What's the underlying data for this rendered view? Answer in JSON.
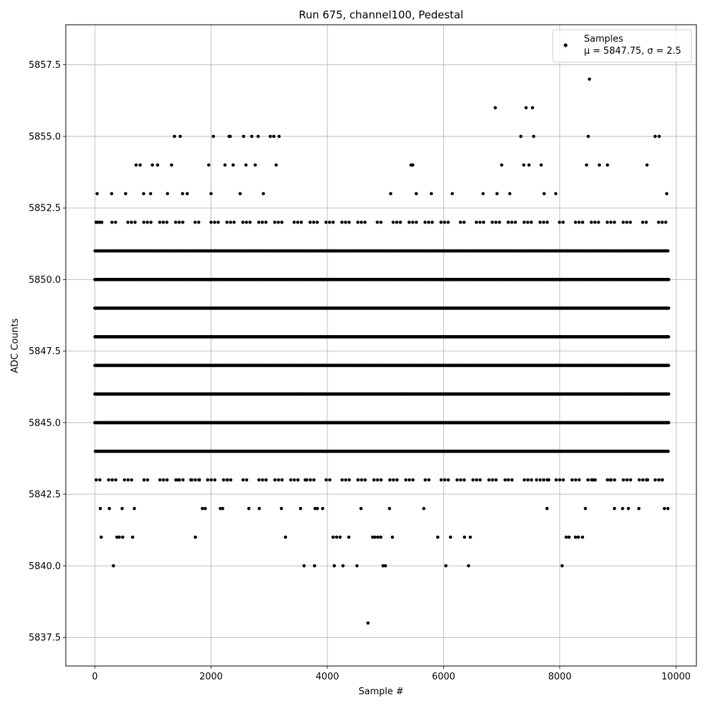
{
  "chart_data": {
    "type": "scatter",
    "title": "Run 675, channel100, Pedestal",
    "xlabel": "Sample #",
    "ylabel": "ADC Counts",
    "xlim": [
      -500,
      10350
    ],
    "ylim": [
      5836.5,
      5858.9
    ],
    "xticks": [
      0,
      2000,
      4000,
      6000,
      8000,
      10000
    ],
    "yticks": [
      5837.5,
      5840.0,
      5842.5,
      5845.0,
      5847.5,
      5850.0,
      5852.5,
      5855.0,
      5857.5
    ],
    "xtick_labels": [
      "0",
      "2000",
      "4000",
      "6000",
      "8000",
      "10000"
    ],
    "ytick_labels": [
      "5837.5",
      "5840.0",
      "5842.5",
      "5845.0",
      "5847.5",
      "5850.0",
      "5852.5",
      "5855.0",
      "5857.5"
    ],
    "grid": true,
    "legend_position": "top-right",
    "marker_color": "#000000",
    "series": [
      {
        "name": "Samples",
        "stats_label_mu": "μ = 5847.75, ",
        "stats_label_sigma": "σ = 2.5",
        "points": [
          [
            5,
            5849
          ],
          [
            40,
            5853
          ],
          [
            50,
            5852
          ],
          [
            95,
            5842
          ],
          [
            110,
            5841
          ],
          [
            120,
            5852
          ],
          [
            250,
            5842
          ],
          [
            290,
            5853
          ],
          [
            320,
            5840
          ],
          [
            380,
            5841
          ],
          [
            420,
            5841
          ],
          [
            470,
            5842
          ],
          [
            480,
            5841
          ],
          [
            530,
            5853
          ],
          [
            650,
            5841
          ],
          [
            680,
            5842
          ],
          [
            710,
            5854
          ],
          [
            780,
            5854
          ],
          [
            840,
            5853
          ],
          [
            960,
            5853
          ],
          [
            990,
            5854
          ],
          [
            1080,
            5854
          ],
          [
            1250,
            5853
          ],
          [
            1320,
            5854
          ],
          [
            1370,
            5855
          ],
          [
            1430,
            5843
          ],
          [
            1470,
            5855
          ],
          [
            1510,
            5853
          ],
          [
            1590,
            5853
          ],
          [
            1650,
            5843
          ],
          [
            1730,
            5841
          ],
          [
            1800,
            5843
          ],
          [
            1850,
            5842
          ],
          [
            1900,
            5842
          ],
          [
            1960,
            5854
          ],
          [
            2000,
            5853
          ],
          [
            2040,
            5855
          ],
          [
            2160,
            5842
          ],
          [
            2200,
            5842
          ],
          [
            2240,
            5854
          ],
          [
            2280,
            5843
          ],
          [
            2310,
            5855
          ],
          [
            2330,
            5855
          ],
          [
            2380,
            5854
          ],
          [
            2500,
            5853
          ],
          [
            2560,
            5855
          ],
          [
            2600,
            5854
          ],
          [
            2650,
            5842
          ],
          [
            2700,
            5855
          ],
          [
            2760,
            5854
          ],
          [
            2810,
            5855
          ],
          [
            2830,
            5842
          ],
          [
            2900,
            5853
          ],
          [
            3020,
            5855
          ],
          [
            3080,
            5855
          ],
          [
            3120,
            5854
          ],
          [
            3170,
            5855
          ],
          [
            3210,
            5842
          ],
          [
            3280,
            5841
          ],
          [
            3540,
            5842
          ],
          [
            3600,
            5840
          ],
          [
            3620,
            5843
          ],
          [
            3780,
            5840
          ],
          [
            3790,
            5842
          ],
          [
            3830,
            5842
          ],
          [
            3920,
            5842
          ],
          [
            4100,
            5841
          ],
          [
            4120,
            5840
          ],
          [
            4160,
            5841
          ],
          [
            4220,
            5841
          ],
          [
            4270,
            5840
          ],
          [
            4370,
            5841
          ],
          [
            4510,
            5840
          ],
          [
            4580,
            5842
          ],
          [
            4700,
            5838
          ],
          [
            4780,
            5841
          ],
          [
            4820,
            5841
          ],
          [
            4870,
            5841
          ],
          [
            4920,
            5841
          ],
          [
            4960,
            5840
          ],
          [
            5000,
            5840
          ],
          [
            5070,
            5842
          ],
          [
            5090,
            5853
          ],
          [
            5120,
            5841
          ],
          [
            5440,
            5854
          ],
          [
            5470,
            5854
          ],
          [
            5530,
            5853
          ],
          [
            5660,
            5842
          ],
          [
            5790,
            5853
          ],
          [
            5900,
            5841
          ],
          [
            6040,
            5840
          ],
          [
            6120,
            5841
          ],
          [
            6150,
            5853
          ],
          [
            6360,
            5841
          ],
          [
            6430,
            5840
          ],
          [
            6460,
            5841
          ],
          [
            6680,
            5853
          ],
          [
            6890,
            5856
          ],
          [
            6920,
            5853
          ],
          [
            7000,
            5854
          ],
          [
            7060,
            5843
          ],
          [
            7140,
            5853
          ],
          [
            7330,
            5855
          ],
          [
            7380,
            5854
          ],
          [
            7420,
            5856
          ],
          [
            7470,
            5854
          ],
          [
            7530,
            5856
          ],
          [
            7550,
            5855
          ],
          [
            7600,
            5843
          ],
          [
            7680,
            5854
          ],
          [
            7730,
            5853
          ],
          [
            7780,
            5842
          ],
          [
            7810,
            5843
          ],
          [
            7930,
            5853
          ],
          [
            8040,
            5840
          ],
          [
            8110,
            5841
          ],
          [
            8160,
            5841
          ],
          [
            8270,
            5841
          ],
          [
            8320,
            5841
          ],
          [
            8390,
            5841
          ],
          [
            8440,
            5842
          ],
          [
            8460,
            5854
          ],
          [
            8490,
            5855
          ],
          [
            8510,
            5857
          ],
          [
            8570,
            5843
          ],
          [
            8680,
            5854
          ],
          [
            8820,
            5854
          ],
          [
            8870,
            5843
          ],
          [
            8940,
            5842
          ],
          [
            9080,
            5842
          ],
          [
            9180,
            5842
          ],
          [
            9360,
            5842
          ],
          [
            9500,
            5854
          ],
          [
            9510,
            5843
          ],
          [
            9640,
            5855
          ],
          [
            9710,
            5855
          ],
          [
            9760,
            5843
          ],
          [
            9800,
            5842
          ],
          [
            9840,
            5853
          ],
          [
            9860,
            5842
          ]
        ]
      }
    ],
    "dense_levels": [
      5843,
      5844,
      5845,
      5846,
      5847,
      5848,
      5849,
      5850,
      5851,
      5852
    ],
    "dense_x_range": [
      0,
      9870
    ]
  }
}
